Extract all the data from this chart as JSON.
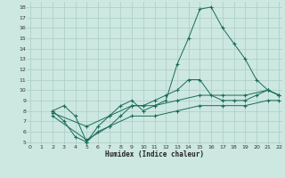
{
  "xlabel": "Humidex (Indice chaleur)",
  "xlim": [
    0,
    22
  ],
  "ylim": [
    5,
    18
  ],
  "xticks": [
    0,
    1,
    2,
    3,
    4,
    5,
    6,
    7,
    8,
    9,
    10,
    11,
    12,
    13,
    14,
    15,
    16,
    17,
    18,
    19,
    20,
    21,
    22
  ],
  "yticks": [
    5,
    6,
    7,
    8,
    9,
    10,
    11,
    12,
    13,
    14,
    15,
    16,
    17,
    18
  ],
  "bg_color": "#cce8e0",
  "line_color": "#1a6b5a",
  "grid_color": "#aaccc4",
  "lines": [
    {
      "x": [
        2,
        3,
        4,
        5,
        6,
        7,
        8,
        9,
        10,
        11,
        12,
        13,
        14,
        15,
        16,
        17,
        18,
        19,
        20,
        21,
        22
      ],
      "y": [
        8,
        8.5,
        7.5,
        5,
        6.5,
        7.5,
        8.5,
        9,
        8,
        8.5,
        9,
        12.5,
        15,
        17.8,
        18,
        16,
        14.5,
        13,
        11,
        10,
        9.5
      ]
    },
    {
      "x": [
        2,
        3,
        4,
        5,
        6,
        7,
        8,
        9,
        10,
        11,
        12,
        13,
        14,
        15,
        16,
        17,
        18,
        19,
        20,
        21,
        22
      ],
      "y": [
        8,
        7,
        5.5,
        5,
        6,
        6.5,
        7.5,
        8.5,
        8.5,
        9,
        9.5,
        10,
        11,
        11,
        9.5,
        9,
        9,
        9,
        9.5,
        10,
        9.5
      ]
    },
    {
      "x": [
        2,
        5,
        7,
        9,
        11,
        13,
        15,
        17,
        19,
        21,
        22
      ],
      "y": [
        7.8,
        6.5,
        7.5,
        8.5,
        8.5,
        9,
        9.5,
        9.5,
        9.5,
        10,
        9.5
      ]
    },
    {
      "x": [
        2,
        5,
        7,
        9,
        11,
        13,
        15,
        17,
        19,
        21,
        22
      ],
      "y": [
        7.5,
        5.2,
        6.5,
        7.5,
        7.5,
        8,
        8.5,
        8.5,
        8.5,
        9,
        9
      ]
    }
  ]
}
